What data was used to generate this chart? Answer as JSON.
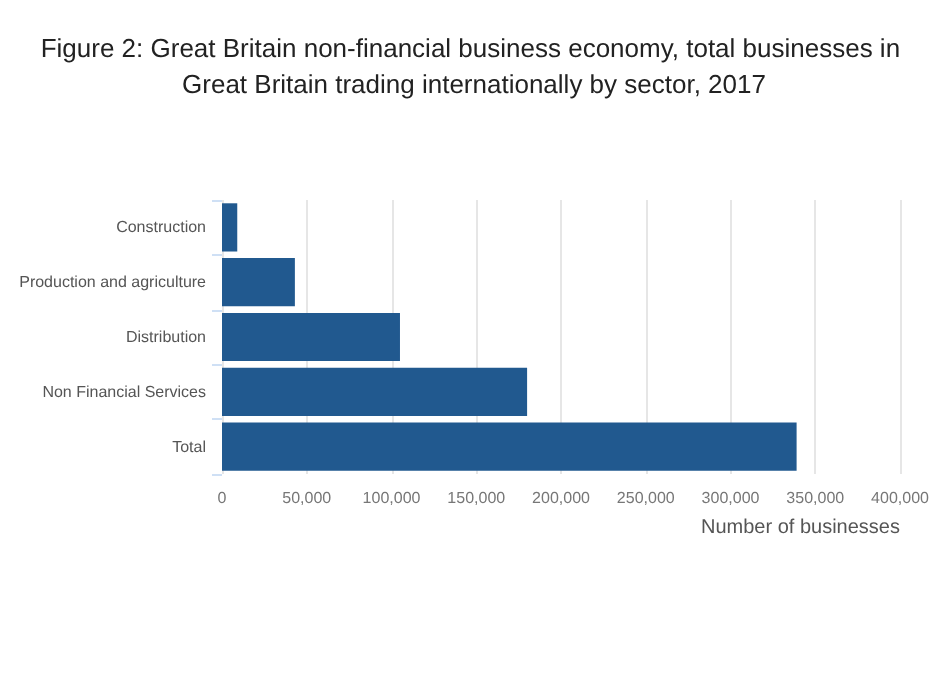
{
  "chart_data": {
    "type": "bar",
    "orientation": "horizontal",
    "title": "Figure 2: Great Britain non-financial business economy, total businesses in Great Britain trading internationally by sector, 2017",
    "categories": [
      "Construction",
      "Production and agriculture",
      "Distribution",
      "Non Financial Services",
      "Total"
    ],
    "values": [
      9000,
      43000,
      105000,
      180000,
      339000
    ],
    "color": "#21598f",
    "xlabel": "Number of businesses",
    "xlim": [
      0,
      400000
    ],
    "xticks": [
      {
        "value": 0,
        "label": "0"
      },
      {
        "value": 50000,
        "label": "50,000"
      },
      {
        "value": 100000,
        "label": "100,000"
      },
      {
        "value": 150000,
        "label": "150,000"
      },
      {
        "value": 200000,
        "label": "200,000"
      },
      {
        "value": 250000,
        "label": "250,000"
      },
      {
        "value": 300000,
        "label": "300,000"
      },
      {
        "value": 350000,
        "label": "350,000"
      },
      {
        "value": 400000,
        "label": "400,000"
      }
    ],
    "grid": "x"
  }
}
